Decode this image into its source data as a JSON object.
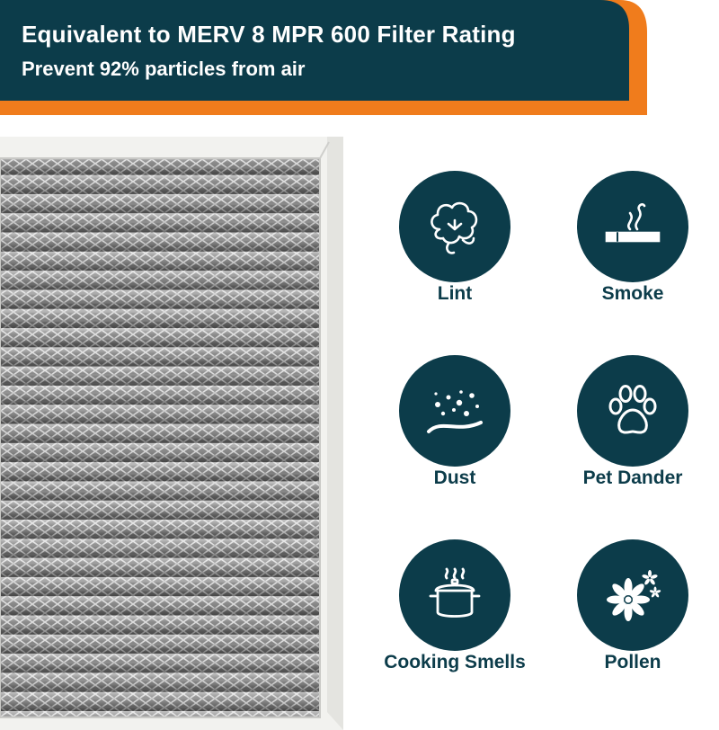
{
  "banner": {
    "title": "Equivalent to MERV 8 MPR 600 Filter Rating",
    "subtitle": "Prevent 92% particles from air"
  },
  "colors": {
    "brand_teal": "#0c3c4a",
    "accent_orange": "#f07c1c",
    "label_text": "#0c3c4a",
    "frame_white": "#f2f2ef",
    "mesh_grey": "#8a8a8a"
  },
  "particles": [
    {
      "label": "Lint",
      "icon": "cotton-icon"
    },
    {
      "label": "Smoke",
      "icon": "cigarette-icon"
    },
    {
      "label": "Dust",
      "icon": "dust-icon"
    },
    {
      "label": "Pet Dander",
      "icon": "paw-icon"
    },
    {
      "label": "Cooking Smells",
      "icon": "cooking-pot-icon"
    },
    {
      "label": "Pollen",
      "icon": "flower-icon"
    }
  ]
}
